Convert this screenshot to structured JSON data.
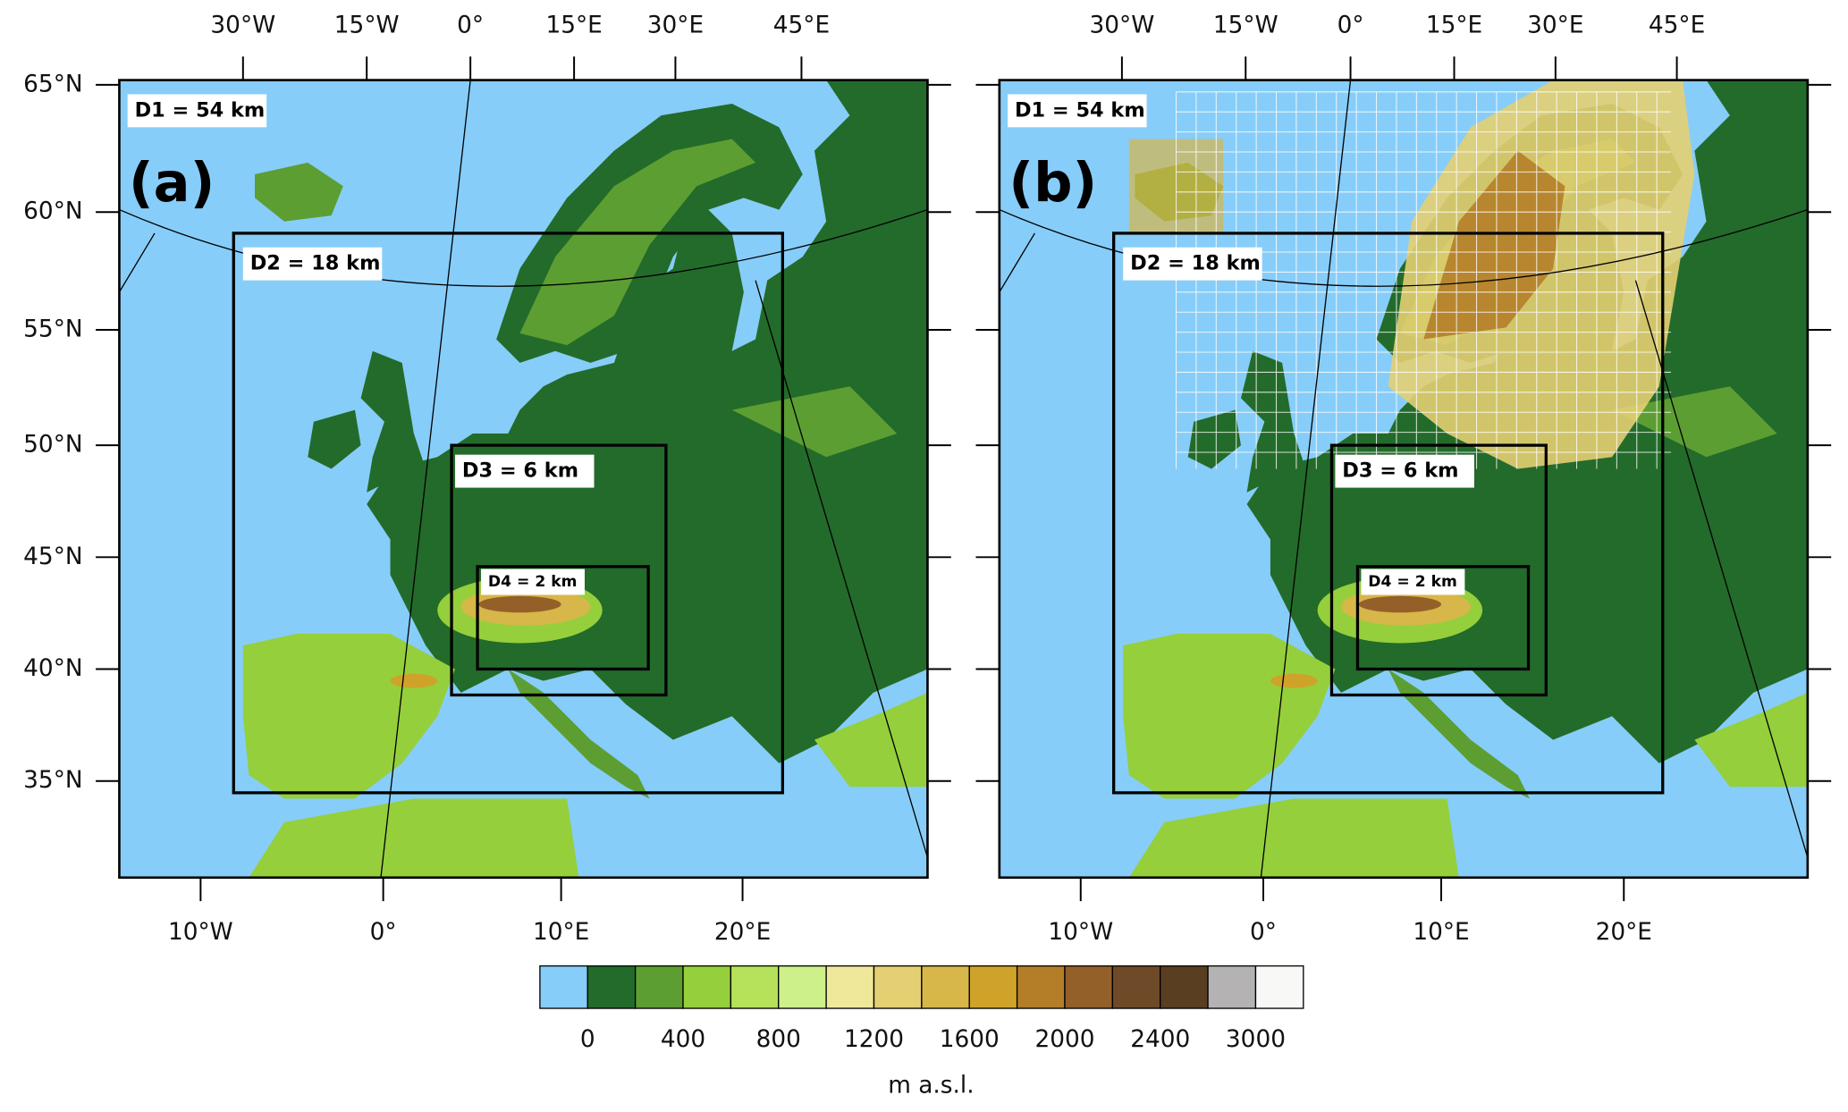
{
  "panels": [
    {
      "label": "(a)",
      "domains": [
        "D1 = 54 km",
        "D2 = 18 km",
        "D3 = 6 km",
        "D4 = 2 km"
      ]
    },
    {
      "label": "(b)",
      "domains": [
        "D1 = 54 km",
        "D2 = 18 km",
        "D3 = 6 km",
        "D4 = 2 km"
      ]
    }
  ],
  "top_axis_labels": [
    "30°W",
    "15°W",
    "0°",
    "15°E",
    "30°E",
    "45°E"
  ],
  "left_axis_labels": [
    "65°N",
    "60°N",
    "55°N",
    "50°N",
    "45°N",
    "40°N",
    "35°N"
  ],
  "bottom_axis_labels": [
    "10°W",
    "0°",
    "10°E",
    "20°E"
  ],
  "colorbar": {
    "colors": [
      "#87cdf9",
      "#236b2a",
      "#5c9e32",
      "#95cf3c",
      "#b5e25a",
      "#cdf08a",
      "#efe89a",
      "#e4cf72",
      "#d7b64a",
      "#cfa22a",
      "#b47e28",
      "#94602a",
      "#6e4a28",
      "#5a3e22",
      "#b4b2b2",
      "#f8f8f6"
    ],
    "labels": [
      "0",
      "400",
      "800",
      "1200",
      "1600",
      "2000",
      "2400",
      "3000"
    ],
    "unit": "m a.s.l."
  }
}
